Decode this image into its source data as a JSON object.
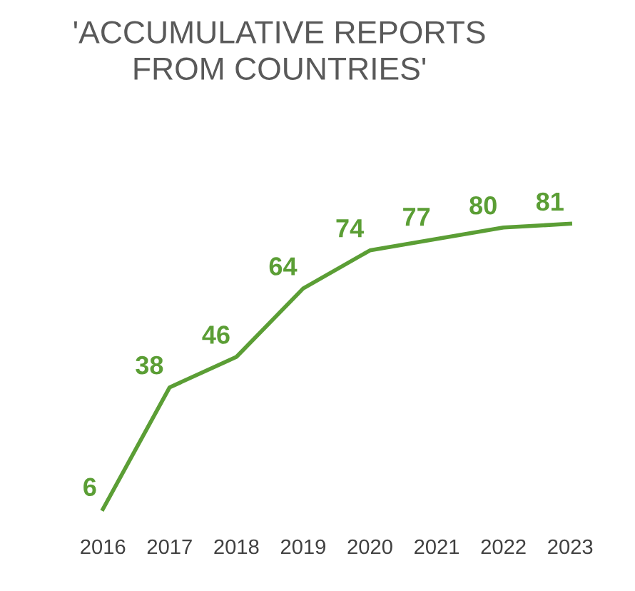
{
  "chart_data": {
    "type": "line",
    "title": "'ACCUMULATIVE REPORTS\nFROM COUNTRIES'",
    "categories": [
      "2016",
      "2017",
      "2018",
      "2019",
      "2020",
      "2021",
      "2022",
      "2023"
    ],
    "series": [
      {
        "color": "#5b9e35",
        "values": [
          6,
          38,
          46,
          64,
          74,
          77,
          80,
          81
        ]
      }
    ],
    "data_labels": true,
    "grid": false,
    "legend": false,
    "marker": "none",
    "line_style": "solid",
    "tick_labels": "x"
  }
}
